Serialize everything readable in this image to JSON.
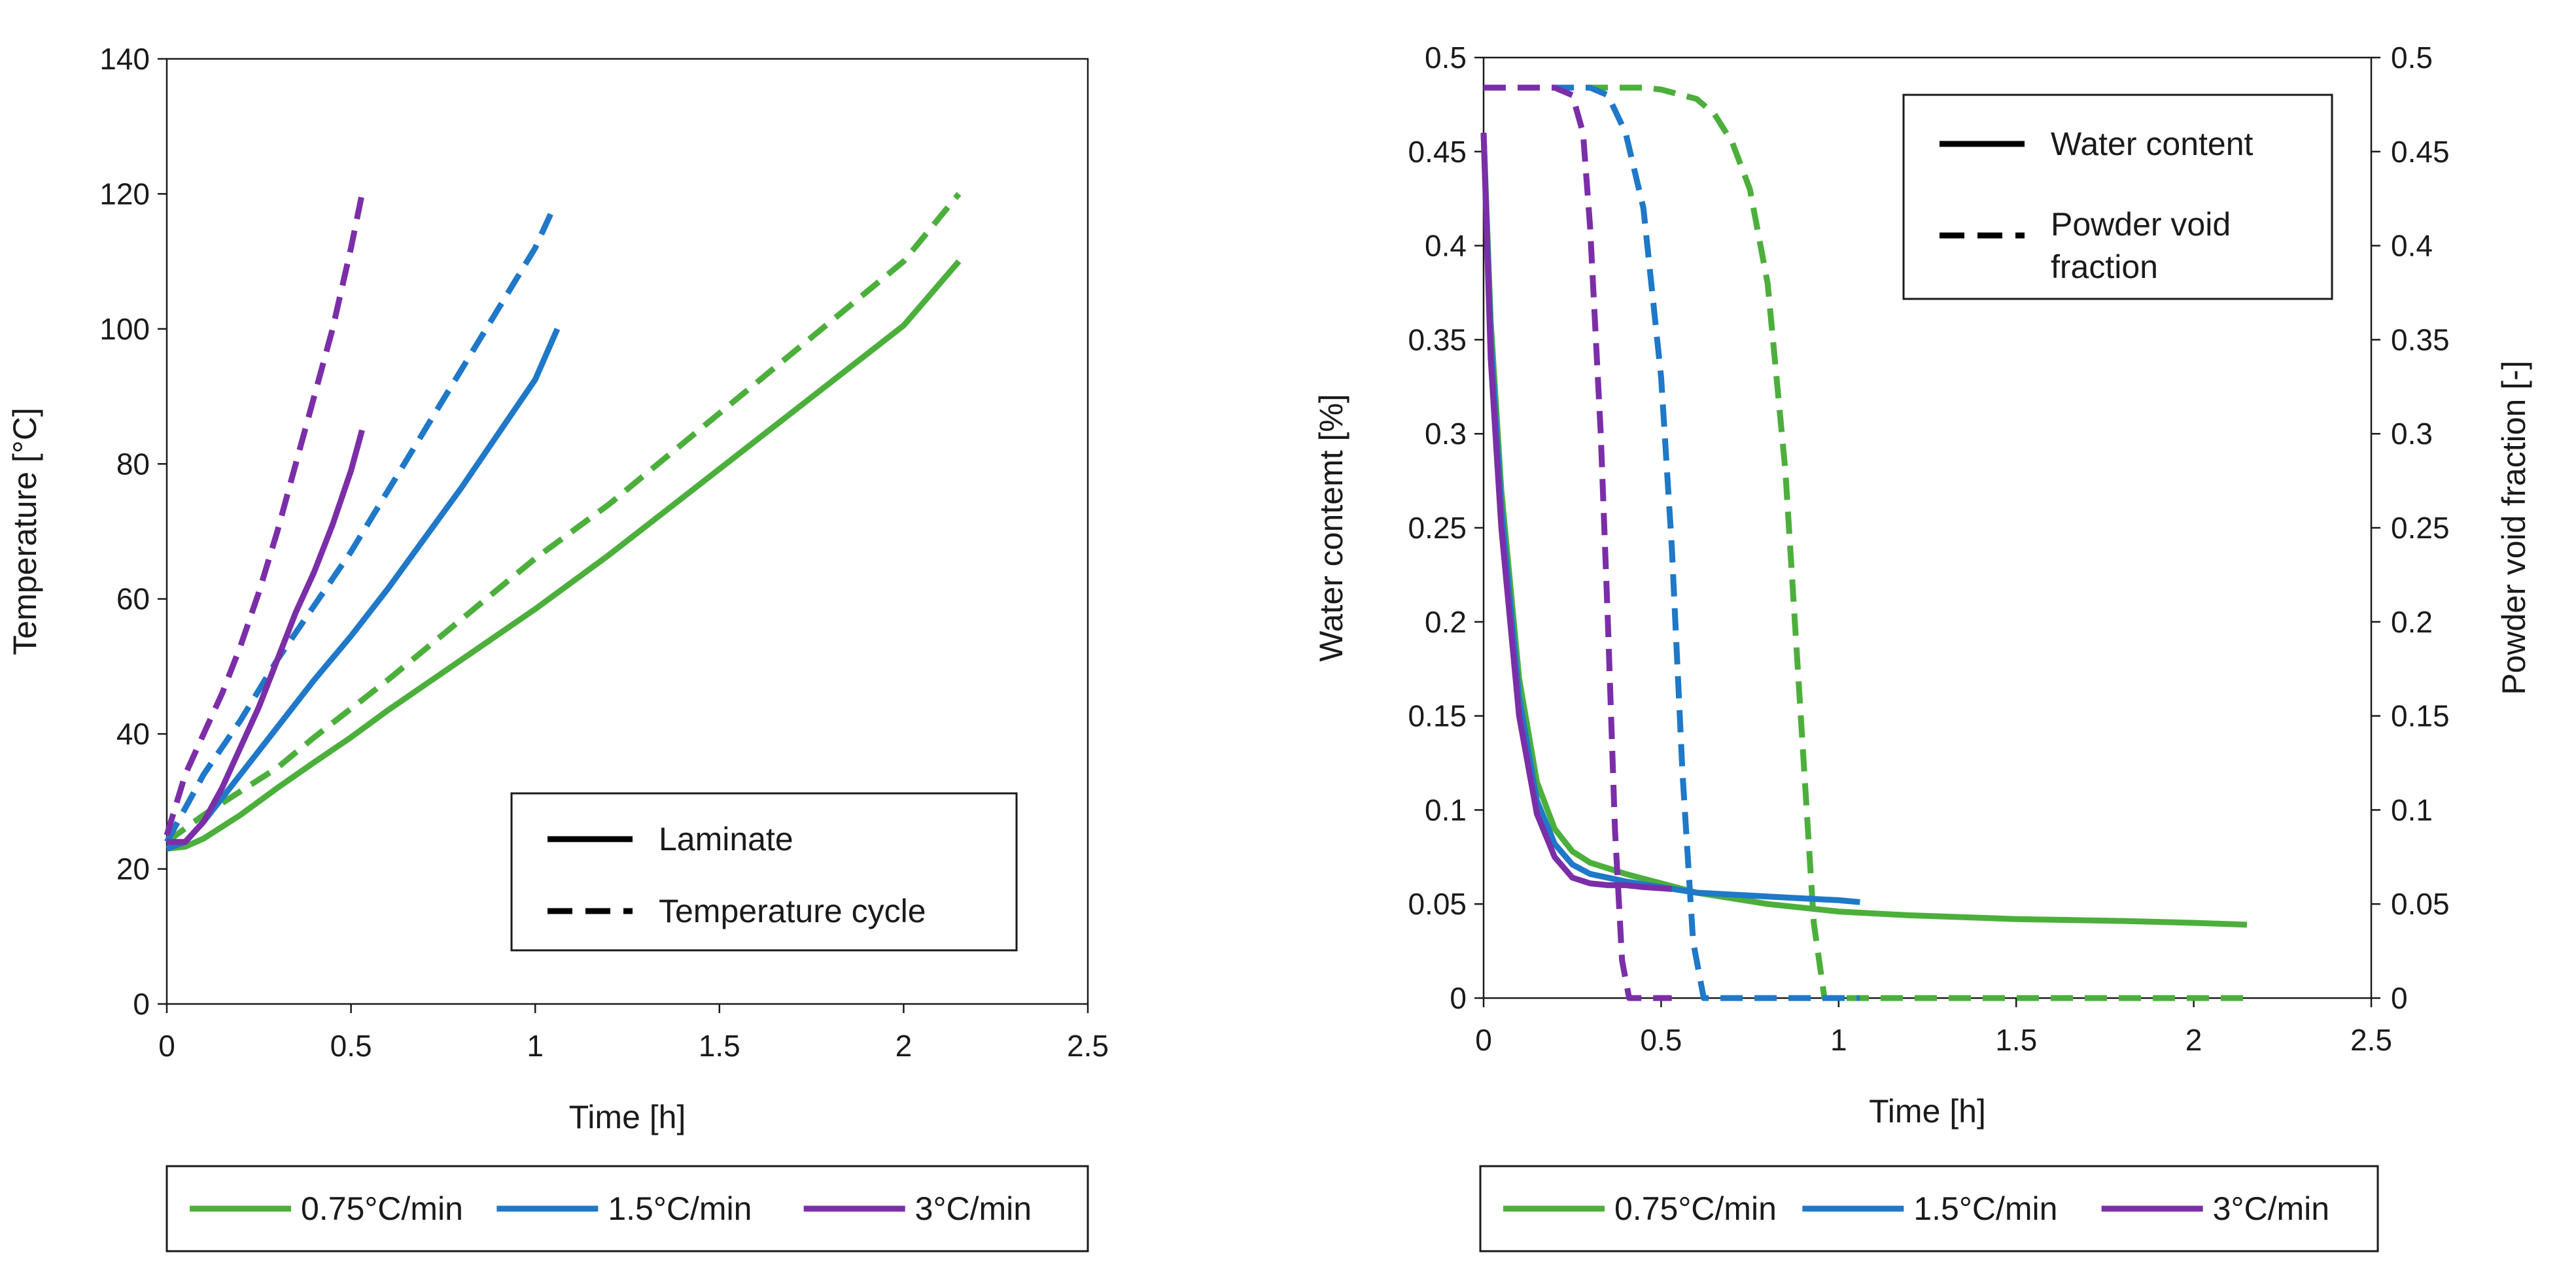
{
  "chart_data": [
    {
      "type": "line",
      "title": "",
      "xlabel": "Time [h]",
      "ylabel": "Temperature [°C]",
      "xlim": [
        0,
        2.5
      ],
      "ylim": [
        0,
        140
      ],
      "xticks": [
        0,
        0.5,
        1,
        1.5,
        2,
        2.5
      ],
      "xtick_labels": [
        "0",
        "0.5",
        "1",
        "1.5",
        "2",
        "2.5"
      ],
      "yticks": [
        0,
        20,
        40,
        60,
        80,
        100,
        120,
        140
      ],
      "ytick_labels": [
        "0",
        "20",
        "40",
        "60",
        "80",
        "100",
        "120",
        "140"
      ],
      "style_legend": [
        {
          "label": "Laminate",
          "dash": "solid"
        },
        {
          "label": "Temperature cycle",
          "dash": "dashed"
        }
      ],
      "series": [
        {
          "name": "0.75°C/min Laminate",
          "color": "#4caf3c",
          "dash": "solid",
          "x": [
            0,
            0.05,
            0.1,
            0.2,
            0.3,
            0.4,
            0.5,
            0.6,
            0.8,
            1.0,
            1.2,
            1.4,
            1.6,
            1.8,
            2.0,
            2.15
          ],
          "y": [
            23,
            23.3,
            24.5,
            28,
            32,
            35.8,
            39.5,
            43.5,
            51,
            58.5,
            66.5,
            75,
            83.5,
            92,
            100.5,
            110
          ]
        },
        {
          "name": "0.75°C/min Temperature cycle",
          "color": "#4caf3c",
          "dash": "dashed",
          "x": [
            0,
            0.05,
            0.1,
            0.2,
            0.3,
            0.4,
            0.6,
            0.8,
            1.0,
            1.2,
            1.4,
            1.6,
            1.8,
            2.0,
            2.15
          ],
          "y": [
            24,
            26,
            28,
            31.5,
            35,
            39.5,
            48,
            57,
            66,
            74,
            83,
            92,
            101,
            110,
            120
          ]
        },
        {
          "name": "1.5°C/min Laminate",
          "color": "#1f78c8",
          "dash": "solid",
          "x": [
            0,
            0.05,
            0.1,
            0.2,
            0.3,
            0.4,
            0.5,
            0.6,
            0.7,
            0.8,
            0.9,
            1.0,
            1.06
          ],
          "y": [
            23,
            24,
            27,
            34,
            41,
            48,
            54.5,
            61.5,
            69,
            76.5,
            84.5,
            92.5,
            100
          ]
        },
        {
          "name": "1.5°C/min Temperature cycle",
          "color": "#1f78c8",
          "dash": "dashed",
          "x": [
            0,
            0.05,
            0.1,
            0.2,
            0.3,
            0.4,
            0.5,
            0.6,
            0.7,
            0.8,
            0.9,
            1.0,
            1.05
          ],
          "y": [
            24,
            29,
            34,
            42,
            51,
            59,
            67,
            76,
            85,
            94,
            103,
            112,
            118
          ]
        },
        {
          "name": "3°C/min Laminate",
          "color": "#7b2ea8",
          "dash": "solid",
          "x": [
            0,
            0.05,
            0.1,
            0.15,
            0.2,
            0.25,
            0.3,
            0.35,
            0.4,
            0.45,
            0.5,
            0.53
          ],
          "y": [
            24,
            24,
            27,
            32,
            38,
            44,
            51,
            58,
            64,
            71,
            79,
            85
          ]
        },
        {
          "name": "3°C/min Temperature cycle",
          "color": "#7b2ea8",
          "dash": "dashed",
          "x": [
            0,
            0.05,
            0.1,
            0.15,
            0.2,
            0.25,
            0.3,
            0.35,
            0.4,
            0.45,
            0.5,
            0.53
          ],
          "y": [
            25,
            34,
            40,
            46,
            53,
            61,
            70,
            80,
            90,
            100,
            112,
            120
          ]
        }
      ],
      "legend": [
        "0.75°C/min",
        "1.5°C/min",
        "3°C/min"
      ],
      "legend_colors": [
        "#4caf3c",
        "#1f78c8",
        "#7b2ea8"
      ]
    },
    {
      "type": "line",
      "title": "",
      "xlabel": "Time [h]",
      "ylabel": "Water contemt [%]",
      "y2label": "Powder void fraction [-]",
      "xlim": [
        0,
        2.5
      ],
      "ylim": [
        0,
        0.5
      ],
      "y2lim": [
        0,
        0.5
      ],
      "xticks": [
        0,
        0.5,
        1,
        1.5,
        2,
        2.5
      ],
      "xtick_labels": [
        "0",
        "0.5",
        "1",
        "1.5",
        "2",
        "2.5"
      ],
      "yticks": [
        0,
        0.05,
        0.1,
        0.15,
        0.2,
        0.25,
        0.3,
        0.35,
        0.4,
        0.45,
        0.5
      ],
      "ytick_labels": [
        "0",
        "0.05",
        "0.1",
        "0.15",
        "0.2",
        "0.25",
        "0.3",
        "0.35",
        "0.4",
        "0.45",
        "0.5"
      ],
      "style_legend": [
        {
          "label": "Water content",
          "dash": "solid"
        },
        {
          "label": "Powder void",
          "label2": "fraction",
          "dash": "dashed"
        }
      ],
      "series": [
        {
          "name": "0.75°C/min Water content",
          "color": "#4caf3c",
          "dash": "solid",
          "x": [
            0,
            0.02,
            0.05,
            0.1,
            0.15,
            0.2,
            0.25,
            0.3,
            0.4,
            0.5,
            0.6,
            0.8,
            1.0,
            1.2,
            1.5,
            1.8,
            2.0,
            2.15
          ],
          "y": [
            0.46,
            0.36,
            0.27,
            0.17,
            0.115,
            0.09,
            0.078,
            0.072,
            0.066,
            0.061,
            0.056,
            0.05,
            0.046,
            0.044,
            0.042,
            0.041,
            0.04,
            0.039
          ]
        },
        {
          "name": "0.75°C/min Powder void fraction",
          "color": "#4caf3c",
          "dash": "dashed",
          "x": [
            0,
            0.3,
            0.45,
            0.5,
            0.6,
            0.65,
            0.7,
            0.75,
            0.8,
            0.85,
            0.9,
            0.93,
            0.96,
            1.2,
            1.6,
            2.0,
            2.15
          ],
          "y": [
            0.484,
            0.484,
            0.484,
            0.483,
            0.478,
            0.47,
            0.455,
            0.43,
            0.38,
            0.28,
            0.13,
            0.04,
            0,
            0,
            0,
            0,
            0
          ]
        },
        {
          "name": "1.5°C/min Water content",
          "color": "#1f78c8",
          "dash": "solid",
          "x": [
            0,
            0.02,
            0.05,
            0.1,
            0.15,
            0.2,
            0.25,
            0.3,
            0.4,
            0.5,
            0.6,
            0.8,
            1.0,
            1.06
          ],
          "y": [
            0.46,
            0.35,
            0.26,
            0.16,
            0.105,
            0.082,
            0.071,
            0.066,
            0.062,
            0.059,
            0.056,
            0.054,
            0.052,
            0.051
          ]
        },
        {
          "name": "1.5°C/min Powder void fraction",
          "color": "#1f78c8",
          "dash": "dashed",
          "x": [
            0,
            0.3,
            0.35,
            0.4,
            0.45,
            0.5,
            0.53,
            0.56,
            0.59,
            0.62,
            0.8,
            1.0,
            1.06
          ],
          "y": [
            0.484,
            0.484,
            0.48,
            0.46,
            0.42,
            0.33,
            0.24,
            0.12,
            0.03,
            0,
            0,
            0,
            0
          ]
        },
        {
          "name": "3°C/min Water content",
          "color": "#7b2ea8",
          "dash": "solid",
          "x": [
            0,
            0.02,
            0.05,
            0.1,
            0.15,
            0.2,
            0.25,
            0.3,
            0.35,
            0.4,
            0.45,
            0.53
          ],
          "y": [
            0.46,
            0.34,
            0.25,
            0.15,
            0.098,
            0.075,
            0.064,
            0.061,
            0.06,
            0.06,
            0.059,
            0.058
          ]
        },
        {
          "name": "3°C/min Powder void fraction",
          "color": "#7b2ea8",
          "dash": "dashed",
          "x": [
            0,
            0.2,
            0.25,
            0.28,
            0.3,
            0.33,
            0.35,
            0.37,
            0.39,
            0.41,
            0.46,
            0.53
          ],
          "y": [
            0.484,
            0.484,
            0.48,
            0.46,
            0.41,
            0.3,
            0.2,
            0.09,
            0.02,
            0,
            0,
            0
          ]
        }
      ],
      "legend": [
        "0.75°C/min",
        "1.5°C/min",
        "3°C/min"
      ],
      "legend_colors": [
        "#4caf3c",
        "#1f78c8",
        "#7b2ea8"
      ]
    }
  ]
}
